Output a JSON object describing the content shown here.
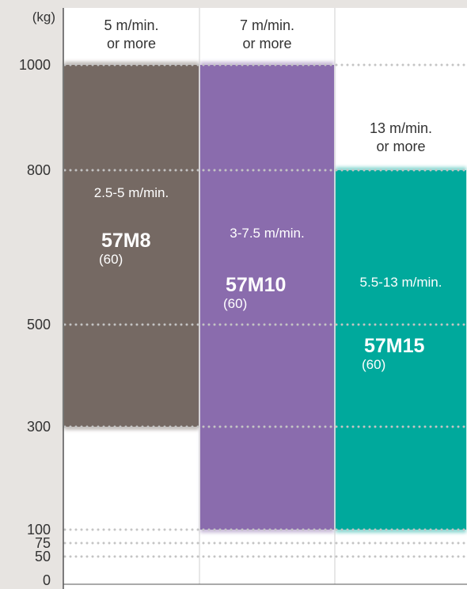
{
  "chart_data": {
    "type": "bar",
    "unit_label": "(kg)",
    "y_ticks": [
      "0",
      "50",
      "75",
      "100",
      "300",
      "500",
      "800",
      "1000"
    ],
    "y_tick_values": [
      0,
      50,
      75,
      100,
      300,
      500,
      800,
      1000
    ],
    "gridlines": [
      50,
      75,
      100,
      300,
      500,
      800,
      1000
    ],
    "columns": [
      {
        "header_line1": "5 m/min.",
        "header_line2": "or more",
        "bar_from": 300,
        "bar_to": 1000,
        "color": "#756963",
        "speed": "2.5-5 m/min.",
        "model": "57M8",
        "model_sub": "(60)"
      },
      {
        "header_line1": "7 m/min.",
        "header_line2": "or more",
        "bar_from": 100,
        "bar_to": 1000,
        "color": "#8a6cad",
        "speed": "3-7.5 m/min.",
        "model": "57M10",
        "model_sub": "(60)"
      },
      {
        "header_line1": "13 m/min.",
        "header_line2": "or more",
        "bar_from": 100,
        "bar_to": 800,
        "color": "#00a99c",
        "speed": "5.5-13 m/min.",
        "model": "57M15",
        "model_sub": "(60)"
      }
    ]
  }
}
